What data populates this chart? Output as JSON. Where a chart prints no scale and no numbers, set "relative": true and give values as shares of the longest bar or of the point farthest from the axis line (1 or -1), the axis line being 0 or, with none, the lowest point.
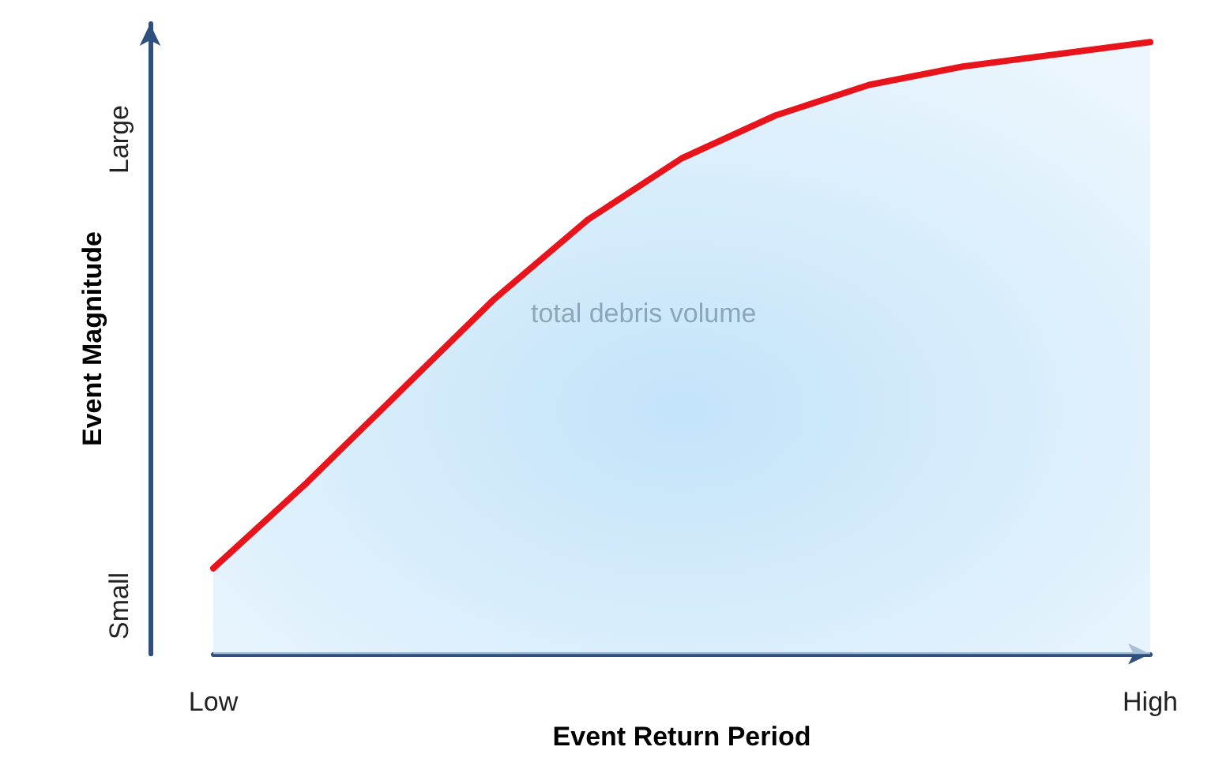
{
  "chart_data": {
    "type": "area",
    "xlabel": "Event Return Period",
    "ylabel": "Event Magnitude",
    "relative": true,
    "categories": [
      "Low",
      null,
      null,
      null,
      null,
      null,
      null,
      null,
      null,
      null,
      "High"
    ],
    "series": [
      {
        "color": "#e8141c",
        "values": [
          0.14,
          0.28,
          0.43,
          0.58,
          0.71,
          0.81,
          0.88,
          0.93,
          0.96,
          0.98,
          1
        ]
      }
    ],
    "annotations": [
      "total debris volume",
      "Small",
      "Large"
    ],
    "grid": false,
    "marker": "none",
    "line_style": "solid"
  }
}
